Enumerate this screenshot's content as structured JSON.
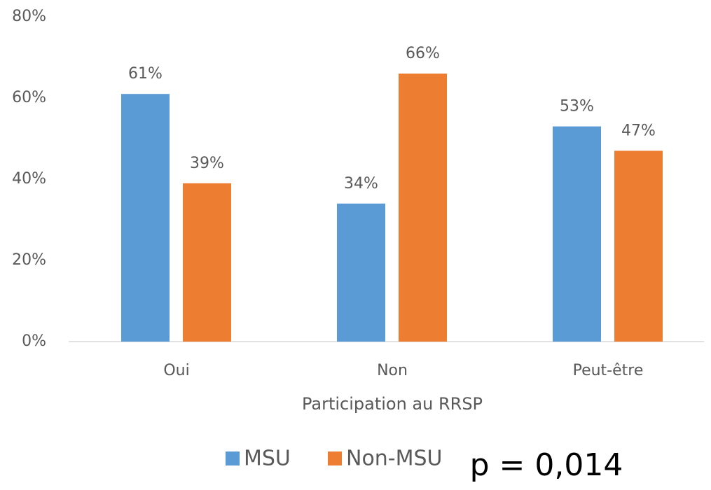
{
  "chart_data": {
    "type": "bar",
    "x_label": "Participation au RRSP",
    "categories": [
      "Oui",
      "Non",
      "Peut-être"
    ],
    "series": [
      {
        "name": "MSU",
        "color": "#5b9bd5",
        "values": [
          61,
          34,
          53
        ],
        "value_labels": [
          "61%",
          "34%",
          "53%"
        ]
      },
      {
        "name": "Non-MSU",
        "color": "#ed7d31",
        "values": [
          39,
          66,
          47
        ],
        "value_labels": [
          "39%",
          "66%",
          "47%"
        ]
      }
    ],
    "ylim": [
      0,
      80
    ],
    "yticks": [
      {
        "value": 0,
        "label": "0%"
      },
      {
        "value": 20,
        "label": "20%"
      },
      {
        "value": 40,
        "label": "40%"
      },
      {
        "value": 60,
        "label": "60%"
      },
      {
        "value": 80,
        "label": "80%"
      }
    ],
    "grid": false,
    "legend": "bottom",
    "annotation": "p = 0,014"
  }
}
